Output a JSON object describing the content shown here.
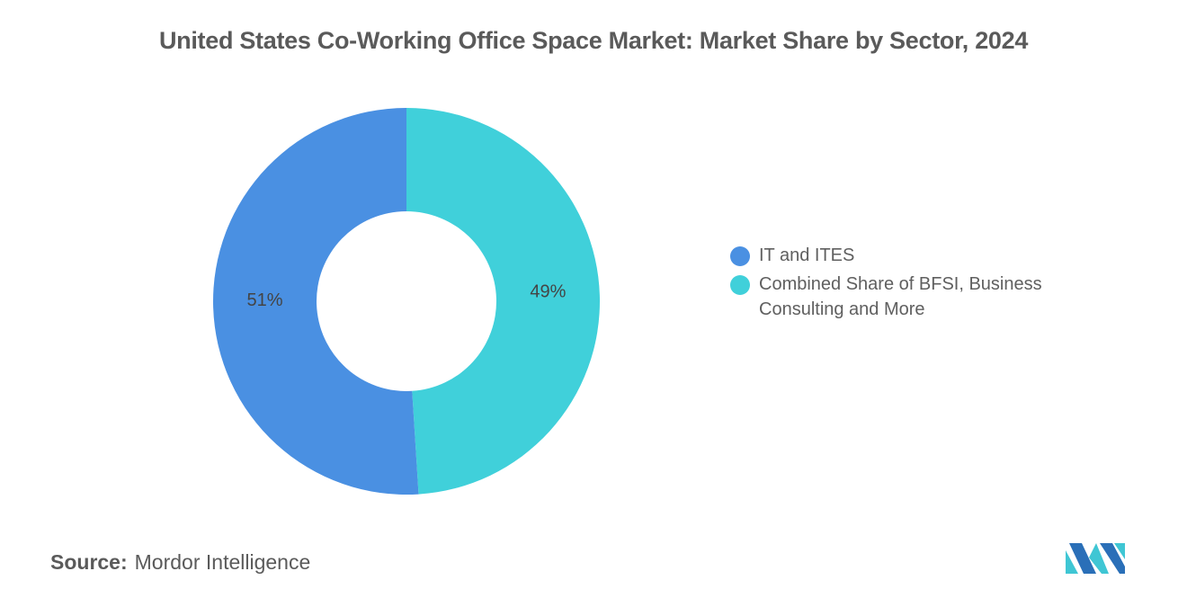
{
  "chart_data": {
    "type": "pie",
    "variant": "donut",
    "title": "United States Co-Working Office Space Market: Market Share by Sector, 2024",
    "slices": [
      {
        "label": "IT and ITES",
        "value": 51,
        "display": "51%",
        "color": "#4a90e2"
      },
      {
        "label": "Combined Share of BFSI, Business Consulting and More",
        "value": 49,
        "display": "49%",
        "color": "#40d0da"
      }
    ],
    "legend_position": "right"
  },
  "source": {
    "label": "Source:",
    "text": "Mordor Intelligence"
  },
  "logo": {
    "icon": "mordor-intelligence-logo-icon",
    "color_dark": "#2a6fb8",
    "color_light": "#3fc6d4"
  }
}
